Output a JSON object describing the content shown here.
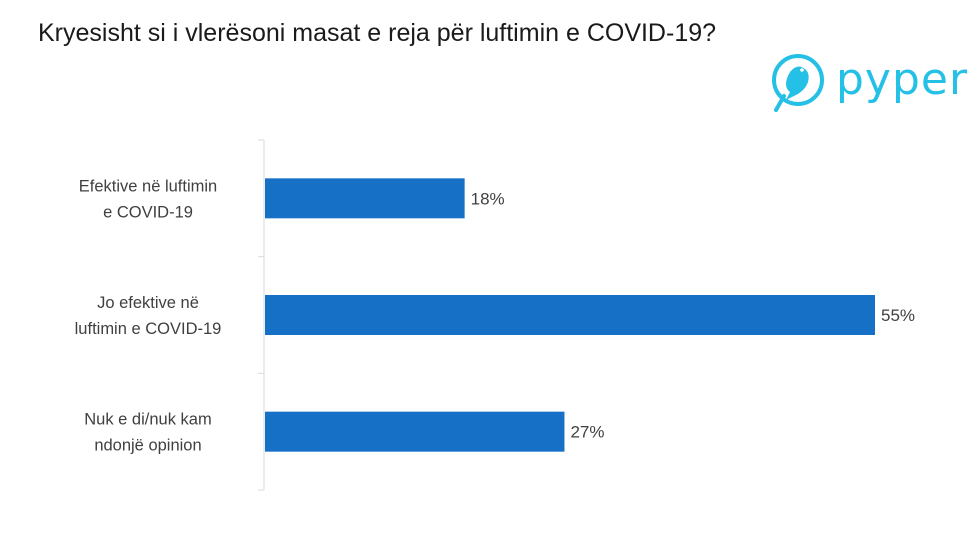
{
  "title": "Kryesisht si i vlerësoni masat e reja për luftimin e COVID-19?",
  "logo": {
    "text": "pyper",
    "icon": "bird-icon",
    "color": "#24c0e6"
  },
  "chart_data": {
    "type": "bar",
    "orientation": "horizontal",
    "categories": [
      [
        "Efektive në luftimin",
        "e COVID-19"
      ],
      [
        "Jo efektive në",
        "luftimin e COVID-19"
      ],
      [
        "Nuk e di/nuk kam",
        "ndonjë opinion"
      ]
    ],
    "values": [
      18,
      55,
      27
    ],
    "value_labels": [
      "18%",
      "55%",
      "27%"
    ],
    "unit": "%",
    "xlim": [
      0,
      55
    ],
    "bar_color": "#1570c6",
    "grid": false,
    "legend": "none"
  }
}
